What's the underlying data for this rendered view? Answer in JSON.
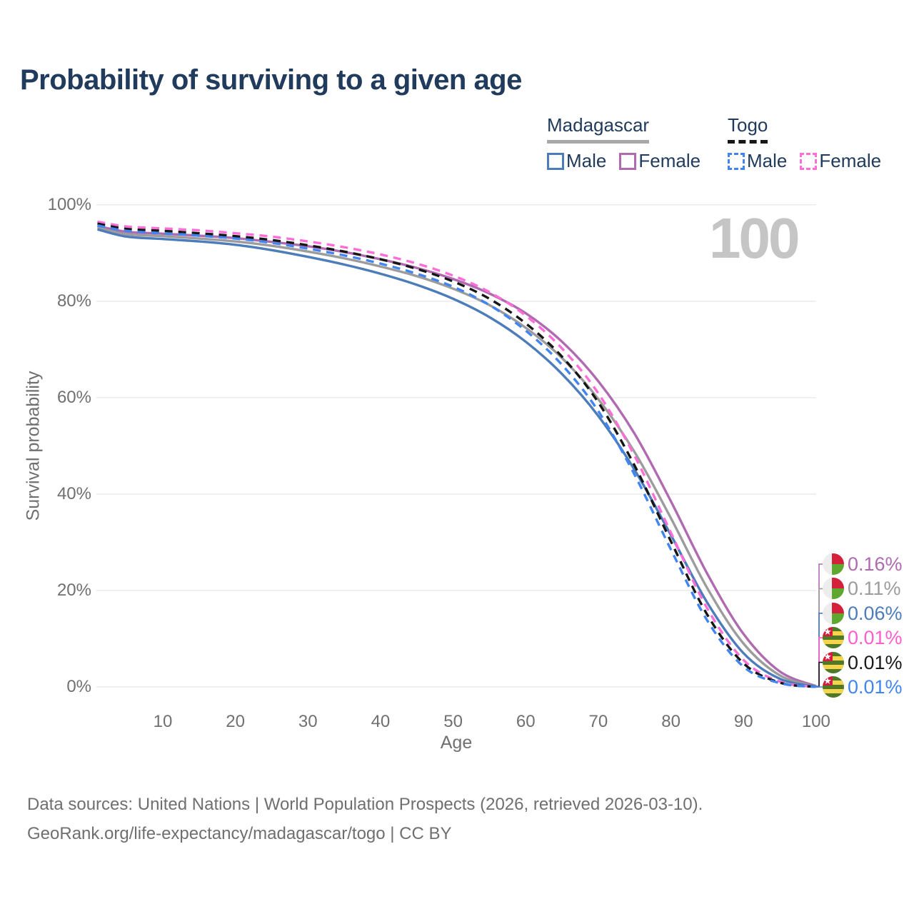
{
  "title": "Probability of surviving to a given age",
  "watermark": "100",
  "legend": {
    "madagascar": {
      "label": "Madagascar",
      "male_label": "Male",
      "female_label": "Female"
    },
    "togo": {
      "label": "Togo",
      "male_label": "Male",
      "female_label": "Female"
    }
  },
  "colors": {
    "madagascar_male": "#4d7cba",
    "madagascar_female": "#b06ab0",
    "madagascar_all": "#9c9c9c",
    "togo_male": "#4285f0",
    "togo_female": "#ff6ed8",
    "togo_all": "#161616",
    "title_text": "#203b5c",
    "axis_text": "#707070",
    "gridline": "#ebebeb",
    "watermark": "#c5c5c5",
    "footer_text": "#6f6f6f"
  },
  "chart_data": {
    "type": "line",
    "title": "Probability of surviving to a given age",
    "xlabel": "Age",
    "ylabel": "Survival probability",
    "xlim": [
      1,
      100
    ],
    "ylim": [
      0,
      100
    ],
    "grid": "horizontal-only",
    "legend_position": "top-right",
    "age_annotation": "100",
    "x_ticks": [
      10,
      20,
      30,
      40,
      50,
      60,
      70,
      80,
      90,
      100
    ],
    "y_ticks": [
      {
        "value": 100,
        "label": "100%"
      },
      {
        "value": 80,
        "label": "80%"
      },
      {
        "value": 60,
        "label": "60%"
      },
      {
        "value": 40,
        "label": "40%"
      },
      {
        "value": 20,
        "label": "20%"
      },
      {
        "value": 0,
        "label": "0%"
      }
    ],
    "x": [
      1,
      5,
      10,
      15,
      20,
      25,
      30,
      35,
      40,
      45,
      50,
      55,
      60,
      65,
      70,
      75,
      80,
      85,
      90,
      95,
      100
    ],
    "series": [
      {
        "id": "madagascar-female",
        "name": "Madagascar Female",
        "country": "Madagascar",
        "sex": "Female",
        "color": "#b06ab0",
        "dashed": false,
        "values": [
          95.6,
          94.4,
          94.0,
          93.6,
          93.1,
          92.3,
          91.4,
          90.2,
          88.7,
          86.9,
          84.6,
          81.6,
          77.5,
          71.6,
          63.4,
          52.5,
          38.5,
          23.5,
          11.0,
          3.2,
          0.16
        ]
      },
      {
        "id": "madagascar-all",
        "name": "Madagascar (both sexes)",
        "country": "Madagascar",
        "sex": "Both",
        "color": "#9c9c9c",
        "dashed": false,
        "values": [
          95.3,
          93.9,
          93.5,
          93.0,
          92.4,
          91.5,
          90.3,
          88.9,
          87.2,
          85.2,
          82.6,
          79.2,
          74.5,
          68.2,
          59.7,
          48.7,
          35.0,
          20.5,
          9.0,
          2.4,
          0.11
        ]
      },
      {
        "id": "madagascar-male",
        "name": "Madagascar Male",
        "country": "Madagascar",
        "sex": "Male",
        "color": "#4d7cba",
        "dashed": false,
        "values": [
          94.9,
          93.4,
          92.9,
          92.4,
          91.7,
          90.6,
          89.2,
          87.6,
          85.7,
          83.4,
          80.5,
          76.7,
          71.6,
          64.9,
          56.2,
          45.0,
          31.5,
          17.5,
          7.0,
          1.7,
          0.06
        ]
      },
      {
        "id": "togo-female",
        "name": "Togo Female",
        "country": "Togo",
        "sex": "Female",
        "color": "#ff6ed8",
        "dashed": true,
        "values": [
          96.5,
          95.5,
          95.1,
          94.7,
          94.1,
          93.4,
          92.4,
          91.2,
          89.7,
          87.8,
          85.3,
          81.9,
          77.0,
          70.2,
          60.9,
          47.9,
          32.0,
          16.3,
          5.6,
          1.1,
          0.01
        ]
      },
      {
        "id": "togo-all",
        "name": "Togo (both sexes)",
        "country": "Togo",
        "sex": "Both",
        "color": "#161616",
        "dashed": true,
        "values": [
          96.1,
          95.0,
          94.6,
          94.1,
          93.5,
          92.7,
          91.6,
          90.3,
          88.7,
          86.7,
          84.1,
          80.5,
          75.4,
          68.5,
          59.0,
          45.9,
          30.2,
          15.0,
          4.9,
          0.9,
          0.01
        ]
      },
      {
        "id": "togo-male",
        "name": "Togo Male",
        "country": "Togo",
        "sex": "Male",
        "color": "#4285f0",
        "dashed": true,
        "values": [
          95.7,
          94.6,
          94.1,
          93.6,
          93.0,
          92.1,
          90.9,
          89.5,
          87.8,
          85.7,
          83.0,
          79.2,
          73.9,
          66.8,
          57.2,
          44.0,
          28.5,
          13.8,
          4.2,
          0.8,
          0.01
        ]
      }
    ],
    "end_labels": [
      {
        "flag": "madagascar",
        "series": "Madagascar Female",
        "value": "0.16%",
        "end_value": 0.16,
        "color": "#b06ab0"
      },
      {
        "flag": "madagascar",
        "series": "Madagascar (both sexes)",
        "value": "0.11%",
        "end_value": 0.11,
        "color": "#9c9c9c"
      },
      {
        "flag": "madagascar",
        "series": "Madagascar Male",
        "value": "0.06%",
        "end_value": 0.06,
        "color": "#4d7cba"
      },
      {
        "flag": "togo",
        "series": "Togo Female",
        "value": "0.01%",
        "end_value": 0.01,
        "color": "#ff5ece"
      },
      {
        "flag": "togo",
        "series": "Togo (both sexes)",
        "value": "0.01%",
        "end_value": 0.01,
        "color": "#1a1a1a"
      },
      {
        "flag": "togo",
        "series": "Togo Male",
        "value": "0.01%",
        "end_value": 0.01,
        "color": "#4285f0"
      }
    ]
  },
  "footer": {
    "line1": "Data sources: United Nations | World Population Prospects (2026, retrieved 2026-03-10).",
    "line2": "GeoRank.org/life-expectancy/madagascar/togo | CC BY"
  }
}
